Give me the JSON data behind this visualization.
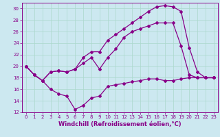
{
  "bg_color": "#cce8f0",
  "grid_color": "#aad8cc",
  "line_color": "#880088",
  "xlim": [
    -0.5,
    23.5
  ],
  "ylim": [
    12,
    31
  ],
  "xticks": [
    0,
    1,
    2,
    3,
    4,
    5,
    6,
    7,
    8,
    9,
    10,
    11,
    12,
    13,
    14,
    15,
    16,
    17,
    18,
    19,
    20,
    21,
    22,
    23
  ],
  "yticks": [
    12,
    14,
    16,
    18,
    20,
    22,
    24,
    26,
    28,
    30
  ],
  "xlabel": "Windchill (Refroidissement éolien,°C)",
  "line1_x": [
    0,
    1,
    2,
    3,
    4,
    5,
    6,
    7,
    8,
    9,
    10,
    11,
    12,
    13,
    14,
    15,
    16,
    17,
    18,
    19,
    20,
    21,
    22,
    23
  ],
  "line1_y": [
    20.0,
    18.5,
    17.5,
    16.0,
    15.2,
    14.8,
    12.5,
    13.2,
    14.5,
    14.8,
    16.5,
    16.8,
    17.0,
    17.3,
    17.5,
    17.8,
    17.8,
    17.5,
    17.5,
    17.8,
    18.0,
    18.0,
    18.0,
    18.0
  ],
  "line2_x": [
    0,
    1,
    2,
    3,
    4,
    5,
    6,
    7,
    8,
    9,
    10,
    11,
    12,
    13,
    14,
    15,
    16,
    17,
    18,
    19,
    20,
    21,
    22,
    23
  ],
  "line2_y": [
    20.0,
    18.5,
    17.5,
    19.0,
    19.2,
    19.0,
    19.5,
    21.5,
    22.5,
    22.5,
    24.5,
    25.5,
    26.5,
    27.5,
    28.5,
    29.5,
    30.3,
    30.5,
    30.3,
    29.5,
    23.2,
    19.0,
    18.0,
    18.0
  ],
  "line3_x": [
    0,
    1,
    2,
    3,
    4,
    5,
    6,
    7,
    8,
    9,
    10,
    11,
    12,
    13,
    14,
    15,
    16,
    17,
    18,
    19,
    20,
    21,
    22,
    23
  ],
  "line3_y": [
    20.0,
    18.5,
    17.5,
    19.0,
    19.2,
    19.0,
    19.5,
    20.5,
    21.5,
    19.5,
    21.5,
    23.0,
    25.0,
    26.0,
    26.5,
    27.0,
    27.5,
    27.5,
    27.5,
    23.5,
    18.5,
    18.0,
    18.0,
    18.0
  ],
  "marker": "D",
  "markersize": 2,
  "linewidth": 0.9,
  "xlabel_fontsize": 6,
  "tick_fontsize": 5
}
